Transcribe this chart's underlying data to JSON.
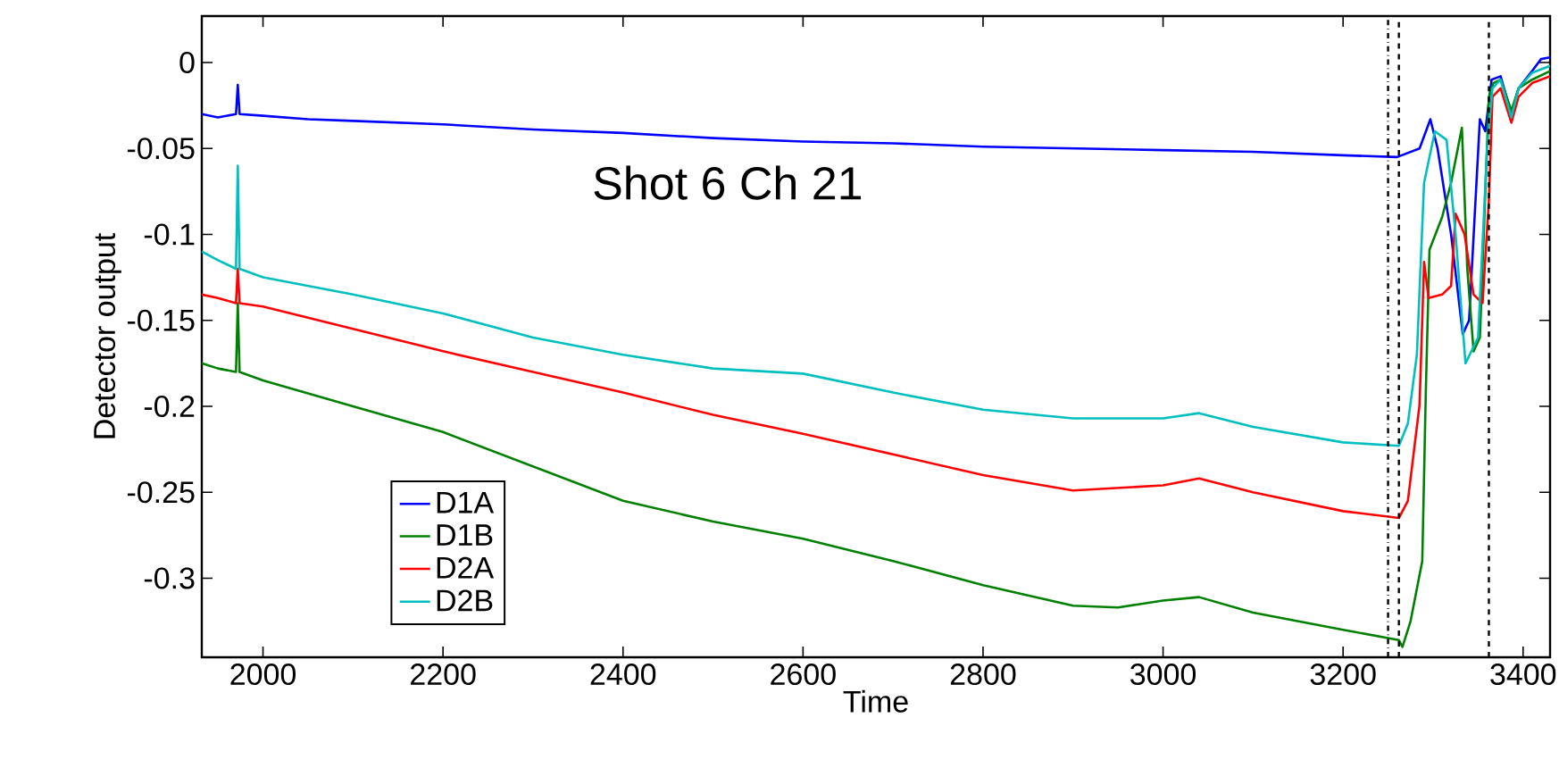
{
  "chart_data": {
    "type": "line",
    "xlabel": "Time",
    "ylabel": "Detector output",
    "annotations": [
      "Shot 6 Ch 21"
    ],
    "xlim": [
      1932,
      3430
    ],
    "ylim": [
      -0.346,
      0.027
    ],
    "xticks": [
      2000,
      2200,
      2400,
      2600,
      2800,
      3000,
      3200,
      3400
    ],
    "yticks": [
      -0.3,
      -0.25,
      -0.2,
      -0.15,
      -0.1,
      -0.05,
      0
    ],
    "legend": "bottom left",
    "marker": "none",
    "line_style": "solid",
    "grid": false,
    "ref_lines": [
      {
        "axis": "x",
        "value": 3250,
        "color": "#000000",
        "line_style": "dashdot"
      },
      {
        "axis": "x",
        "value": 3262,
        "color": "#000000",
        "line_style": "dashed"
      },
      {
        "axis": "x",
        "value": 3362,
        "color": "#000000",
        "line_style": "dashed"
      }
    ],
    "series": [
      {
        "name": "D1A",
        "color": "#0000ff",
        "x": [
          1932,
          1950,
          1970,
          1972,
          1974,
          2000,
          2050,
          2100,
          2200,
          2300,
          2400,
          2500,
          2600,
          2700,
          2800,
          2900,
          3000,
          3100,
          3200,
          3260,
          3285,
          3297,
          3305,
          3320,
          3333,
          3340,
          3352,
          3358,
          3365,
          3375,
          3387,
          3395,
          3410,
          3420,
          3430
        ],
        "values": [
          -0.03,
          -0.032,
          -0.03,
          -0.013,
          -0.03,
          -0.031,
          -0.033,
          -0.034,
          -0.036,
          -0.039,
          -0.041,
          -0.044,
          -0.046,
          -0.047,
          -0.049,
          -0.05,
          -0.051,
          -0.052,
          -0.054,
          -0.055,
          -0.05,
          -0.033,
          -0.05,
          -0.1,
          -0.158,
          -0.15,
          -0.033,
          -0.04,
          -0.01,
          -0.008,
          -0.03,
          -0.015,
          -0.005,
          0.002,
          0.003
        ]
      },
      {
        "name": "D1B",
        "color": "#008000",
        "x": [
          1932,
          1950,
          1970,
          1972,
          1974,
          2000,
          2100,
          2200,
          2300,
          2400,
          2500,
          2600,
          2700,
          2800,
          2900,
          2950,
          3000,
          3040,
          3100,
          3200,
          3262,
          3266,
          3275,
          3288,
          3292,
          3296,
          3310,
          3320,
          3332,
          3338,
          3345,
          3352,
          3362,
          3367,
          3375,
          3387,
          3395,
          3410,
          3430
        ],
        "values": [
          -0.175,
          -0.178,
          -0.18,
          -0.14,
          -0.18,
          -0.185,
          -0.2,
          -0.215,
          -0.235,
          -0.255,
          -0.267,
          -0.277,
          -0.29,
          -0.304,
          -0.316,
          -0.317,
          -0.313,
          -0.311,
          -0.32,
          -0.33,
          -0.336,
          -0.34,
          -0.325,
          -0.29,
          -0.19,
          -0.109,
          -0.09,
          -0.07,
          -0.038,
          -0.12,
          -0.168,
          -0.16,
          -0.02,
          -0.012,
          -0.01,
          -0.028,
          -0.015,
          -0.01,
          -0.005
        ]
      },
      {
        "name": "D2A",
        "color": "#ff0000",
        "x": [
          1932,
          1950,
          1970,
          1972,
          1974,
          2000,
          2100,
          2200,
          2300,
          2400,
          2500,
          2600,
          2700,
          2800,
          2900,
          3000,
          3040,
          3100,
          3200,
          3262,
          3272,
          3285,
          3290,
          3295,
          3310,
          3320,
          3325,
          3335,
          3345,
          3355,
          3362,
          3366,
          3375,
          3387,
          3395,
          3410,
          3430
        ],
        "values": [
          -0.135,
          -0.137,
          -0.14,
          -0.12,
          -0.14,
          -0.142,
          -0.155,
          -0.168,
          -0.18,
          -0.192,
          -0.205,
          -0.216,
          -0.228,
          -0.24,
          -0.249,
          -0.246,
          -0.242,
          -0.25,
          -0.261,
          -0.265,
          -0.255,
          -0.199,
          -0.116,
          -0.137,
          -0.135,
          -0.13,
          -0.088,
          -0.1,
          -0.135,
          -0.14,
          -0.08,
          -0.02,
          -0.015,
          -0.035,
          -0.02,
          -0.012,
          -0.008
        ]
      },
      {
        "name": "D2B",
        "color": "#00bfbf",
        "x": [
          1932,
          1950,
          1970,
          1972,
          1974,
          2000,
          2100,
          2200,
          2300,
          2400,
          2500,
          2600,
          2700,
          2800,
          2900,
          3000,
          3040,
          3100,
          3200,
          3262,
          3272,
          3282,
          3290,
          3302,
          3315,
          3325,
          3336,
          3350,
          3360,
          3366,
          3375,
          3387,
          3395,
          3410,
          3430
        ],
        "values": [
          -0.11,
          -0.115,
          -0.12,
          -0.06,
          -0.12,
          -0.125,
          -0.135,
          -0.146,
          -0.16,
          -0.17,
          -0.178,
          -0.181,
          -0.192,
          -0.202,
          -0.207,
          -0.207,
          -0.204,
          -0.212,
          -0.221,
          -0.223,
          -0.21,
          -0.17,
          -0.07,
          -0.04,
          -0.045,
          -0.1,
          -0.175,
          -0.16,
          -0.05,
          -0.015,
          -0.01,
          -0.032,
          -0.015,
          -0.006,
          -0.002
        ]
      }
    ]
  }
}
